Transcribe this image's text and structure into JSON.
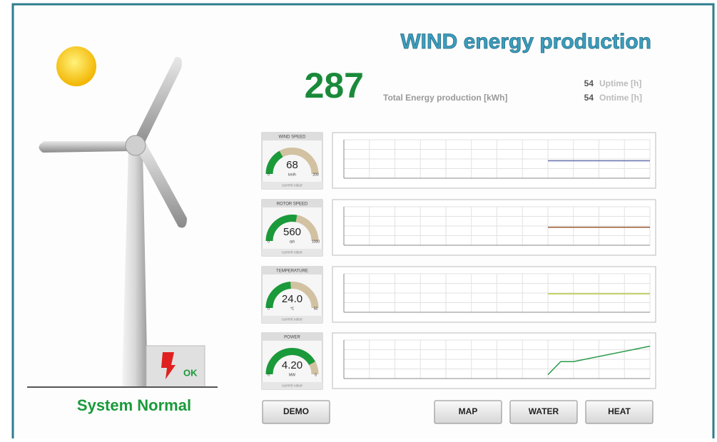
{
  "header": {
    "title": "WIND energy production",
    "total": 287,
    "total_label": "Total Energy production [kWh]",
    "uptime": 54,
    "uptime_label": "Uptime [h]",
    "ontime": 54,
    "ontime_label": "Ontime [h]"
  },
  "status": {
    "text": "System Normal",
    "badge": "OK"
  },
  "gauges": [
    {
      "title": "WIND SPEED",
      "value": 68,
      "unit": "km/h",
      "min": 0,
      "max": 200,
      "caption": "current value"
    },
    {
      "title": "ROTOR SPEED",
      "value": 560,
      "unit": "rph",
      "min": 0,
      "max": 1000,
      "caption": "current value"
    },
    {
      "title": "TEMPERATURE",
      "value": {
        "value": 24,
        "label": "24.0"
      },
      "unit": "°C",
      "min": 0,
      "max": 50,
      "caption": "current value"
    },
    {
      "title": "POWER",
      "value": {
        "value": 4.2,
        "label": "4.20"
      },
      "unit": "MW",
      "min": 0,
      "max": 5,
      "caption": "current value"
    }
  ],
  "charts": [
    {
      "x": [
        8,
        9,
        10,
        11,
        12
      ],
      "values": [
        68,
        68,
        68,
        68,
        68
      ],
      "xlim": [
        0,
        12
      ],
      "ylim": [
        0,
        150
      ],
      "color": "#6870b0"
    },
    {
      "x": [
        8,
        9,
        10,
        11,
        12
      ],
      "values": [
        560,
        560,
        560,
        560,
        560
      ],
      "xlim": [
        0,
        12
      ],
      "ylim": [
        0,
        1200
      ],
      "color": "#9a5a30"
    },
    {
      "x": [
        8,
        9,
        10,
        11,
        12
      ],
      "values": [
        24,
        24,
        24,
        24,
        24
      ],
      "xlim": [
        0,
        12
      ],
      "ylim": [
        0,
        50
      ],
      "color": "#b8c840"
    },
    {
      "x": [
        8,
        8.5,
        9,
        12
      ],
      "values": [
        0.5,
        2.2,
        2.2,
        4.2
      ],
      "xlim": [
        0,
        12
      ],
      "ylim": [
        0,
        5
      ],
      "color": "#2a9a4a"
    }
  ],
  "buttons": [
    "DEMO",
    "MAP",
    "WATER",
    "HEAT"
  ]
}
